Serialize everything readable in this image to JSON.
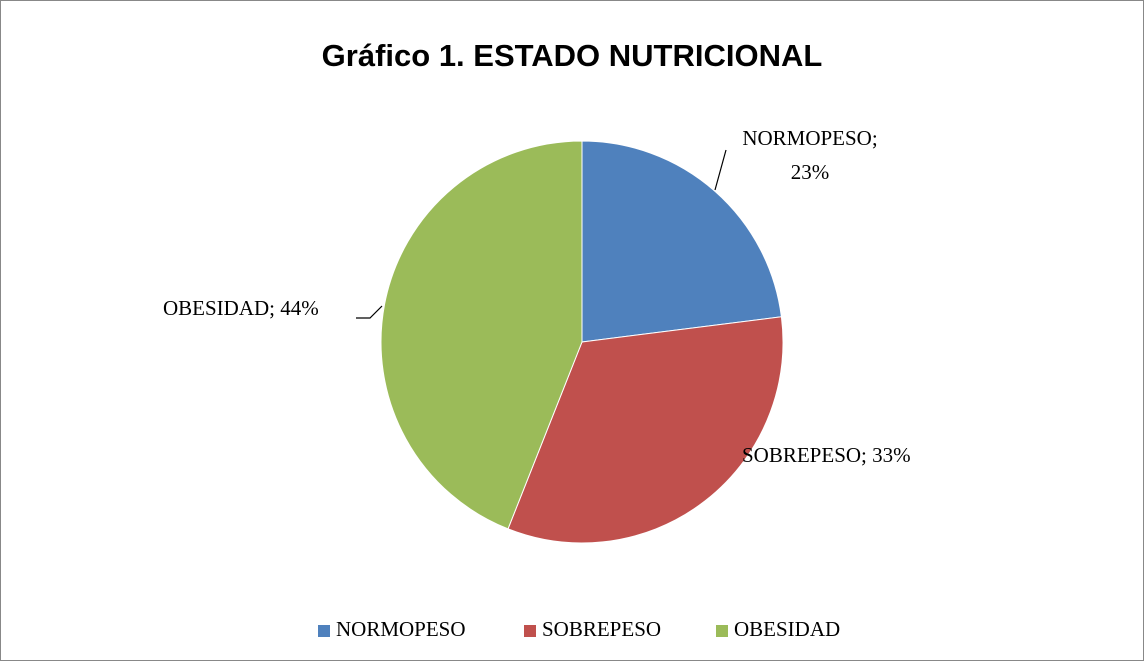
{
  "chart_data": {
    "type": "pie",
    "title": "Gráfico 1. ESTADO NUTRICIONAL",
    "categories": [
      "NORMOPESO",
      "SOBREPESO",
      "OBESIDAD"
    ],
    "values": [
      23,
      33,
      44
    ],
    "value_labels": [
      "NORMOPESO; 23%",
      "SOBREPESO; 33%",
      "OBESIDAD; 44%"
    ],
    "colors": [
      "#4f81bd",
      "#c0504d",
      "#9bbb59"
    ],
    "legend": "bottom"
  }
}
